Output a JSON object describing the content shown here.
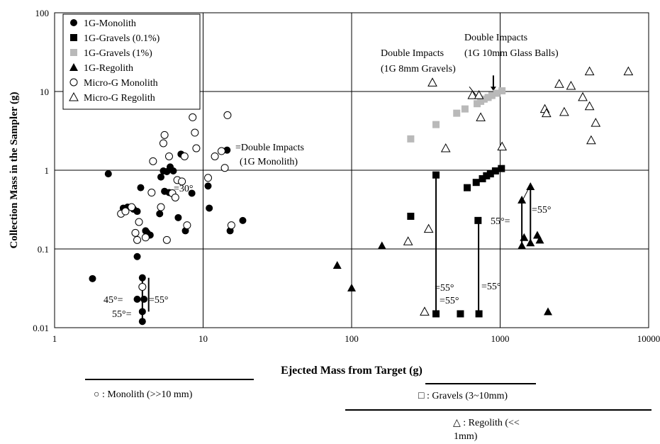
{
  "chart_data": {
    "type": "scatter",
    "title": "",
    "xlabel": "Ejected Mass from Target (g)",
    "ylabel": "Collection Mass in the Sampler (g)",
    "x_scale": "log",
    "y_scale": "log",
    "xlim": [
      1,
      10000
    ],
    "ylim": [
      0.01,
      100
    ],
    "x_ticks": [
      "1",
      "10",
      "100",
      "1000",
      "10000"
    ],
    "y_ticks": [
      "0.01",
      "0.1",
      "1",
      "10",
      "100"
    ],
    "grid": true,
    "legend_position": "top-left",
    "series": [
      {
        "name": "1G-Monolith",
        "marker": "filled-circle",
        "color": "#000000",
        "points": [
          [
            1.8,
            0.042
          ],
          [
            2.3,
            0.9
          ],
          [
            2.9,
            0.33
          ],
          [
            3.1,
            0.34
          ],
          [
            3.4,
            0.32
          ],
          [
            3.6,
            0.3
          ],
          [
            3.8,
            0.6
          ],
          [
            4.1,
            0.17
          ],
          [
            4.2,
            0.16
          ],
          [
            4.4,
            0.15
          ],
          [
            5.1,
            0.28
          ],
          [
            5.2,
            0.82
          ],
          [
            5.4,
            0.98
          ],
          [
            5.5,
            0.54
          ],
          [
            5.7,
            0.96
          ],
          [
            5.9,
            0.52
          ],
          [
            6.0,
            1.1
          ],
          [
            6.3,
            0.98
          ],
          [
            6.8,
            0.25
          ],
          [
            7.1,
            1.6
          ],
          [
            7.6,
            0.17
          ],
          [
            8.4,
            0.51
          ],
          [
            10.8,
            0.63
          ],
          [
            11.0,
            0.33
          ],
          [
            14.5,
            1.8
          ],
          [
            15.2,
            0.17
          ],
          [
            18.5,
            0.23
          ],
          [
            3.6,
            0.023
          ],
          [
            3.9,
            0.043
          ],
          [
            3.9,
            0.016
          ],
          [
            3.9,
            0.012
          ],
          [
            4.0,
            0.023
          ],
          [
            3.6,
            0.08
          ]
        ]
      },
      {
        "name": "1G-Gravels (0.1%)",
        "marker": "filled-square",
        "color": "#000000",
        "points": [
          [
            250,
            0.26
          ],
          [
            370,
            0.87
          ],
          [
            370,
            0.015
          ],
          [
            540,
            0.015
          ],
          [
            600,
            0.6
          ],
          [
            690,
            0.7
          ],
          [
            710,
            0.23
          ],
          [
            720,
            0.015
          ],
          [
            760,
            0.78
          ],
          [
            810,
            0.85
          ],
          [
            860,
            0.9
          ],
          [
            930,
            0.98
          ],
          [
            1020,
            1.05
          ]
        ]
      },
      {
        "name": "1G-Gravels (1%)",
        "marker": "filled-square",
        "color": "#b9b9b9",
        "points": [
          [
            250,
            2.5
          ],
          [
            370,
            3.8
          ],
          [
            510,
            5.3
          ],
          [
            580,
            6.0
          ],
          [
            700,
            7.0
          ],
          [
            740,
            7.5
          ],
          [
            780,
            8.0
          ],
          [
            830,
            8.4
          ],
          [
            880,
            8.9
          ],
          [
            950,
            9.5
          ],
          [
            1030,
            10.2
          ]
        ]
      },
      {
        "name": "1G-Regolith",
        "marker": "filled-triangle",
        "color": "#000000",
        "points": [
          [
            80,
            0.062
          ],
          [
            100,
            0.032
          ],
          [
            160,
            0.11
          ],
          [
            1400,
            0.42
          ],
          [
            1400,
            0.11
          ],
          [
            1450,
            0.14
          ],
          [
            1600,
            0.62
          ],
          [
            1600,
            0.12
          ],
          [
            1780,
            0.15
          ],
          [
            1850,
            0.13
          ],
          [
            2100,
            0.016
          ]
        ]
      },
      {
        "name": "Micro-G Monolith",
        "marker": "open-circle",
        "color": "#000000",
        "points": [
          [
            2.8,
            0.28
          ],
          [
            3.0,
            0.3
          ],
          [
            3.3,
            0.34
          ],
          [
            3.5,
            0.16
          ],
          [
            3.6,
            0.13
          ],
          [
            3.7,
            0.22
          ],
          [
            4.1,
            0.14
          ],
          [
            4.5,
            0.52
          ],
          [
            4.6,
            1.3
          ],
          [
            5.2,
            0.34
          ],
          [
            5.4,
            2.2
          ],
          [
            5.5,
            2.8
          ],
          [
            5.7,
            0.13
          ],
          [
            5.9,
            1.5
          ],
          [
            6.2,
            0.51
          ],
          [
            6.5,
            0.45
          ],
          [
            6.7,
            0.75
          ],
          [
            7.2,
            0.72
          ],
          [
            7.5,
            1.5
          ],
          [
            7.8,
            0.2
          ],
          [
            8.5,
            4.7
          ],
          [
            8.8,
            3.0
          ],
          [
            9.0,
            1.9
          ],
          [
            10.8,
            0.8
          ],
          [
            12.0,
            1.5
          ],
          [
            13.3,
            1.75
          ],
          [
            14.0,
            1.07
          ],
          [
            14.6,
            5.0
          ],
          [
            15.5,
            0.2
          ],
          [
            3.9,
            0.033
          ]
        ]
      },
      {
        "name": "Micro-G Regolith",
        "marker": "open-triangle",
        "color": "#000000",
        "points": [
          [
            240,
            0.125
          ],
          [
            310,
            0.016
          ],
          [
            330,
            0.18
          ],
          [
            350,
            13.0
          ],
          [
            430,
            1.9
          ],
          [
            650,
            9.0
          ],
          [
            720,
            9.0
          ],
          [
            740,
            4.7
          ],
          [
            1030,
            2.0
          ],
          [
            2000,
            6.0
          ],
          [
            2050,
            5.3
          ],
          [
            2500,
            12.5
          ],
          [
            2700,
            5.5
          ],
          [
            3000,
            11.8
          ],
          [
            3600,
            8.5
          ],
          [
            4000,
            18.0
          ],
          [
            4000,
            6.5
          ],
          [
            4100,
            2.4
          ],
          [
            4400,
            4.0
          ],
          [
            7300,
            18.0
          ]
        ]
      }
    ],
    "annotations": [
      "=Double Impacts",
      "(1G Monolith)",
      "Double Impacts",
      "(1G 10mm Glass Balls)",
      "Double Impacts",
      "(1G 8mm Gravels)",
      "=30°",
      "45°=",
      "=55°",
      "55°=",
      "=55°",
      "=55°",
      "=55°",
      "55°=",
      "=55°"
    ],
    "footnotes": [
      "○ : Monolith (>>10 mm)",
      "□ : Gravels (3~10mm)",
      "△ : Regolith (<<",
      "1mm)"
    ]
  }
}
